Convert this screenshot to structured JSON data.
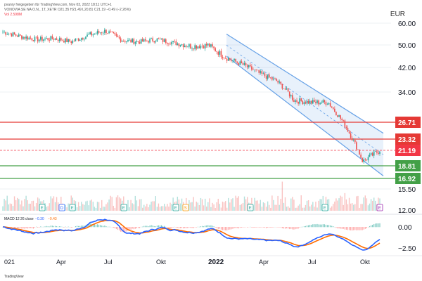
{
  "header": {
    "line1": "pvanry freigegeben für TradingView.com, Nov 03, 2022 18:11 UTC+1",
    "line2": "VONOVIA SE NA O.N., 1T, XETR  O21.35 H21.49 L20.81 C21.19 −0.49 (−2.26%)",
    "line3": "Vol 2.598M"
  },
  "currency": "EUR",
  "price_axis": {
    "ticks": [
      "60.00",
      "50.00",
      "42.00",
      "34.00",
      "15.50",
      "12.00"
    ],
    "tick_values": [
      60,
      50,
      42,
      34,
      15.5,
      12
    ],
    "log_scale": true
  },
  "levels": [
    {
      "label": "26.71",
      "value": 26.71,
      "color": "#e53935"
    },
    {
      "label": "23.32",
      "value": 23.32,
      "color": "#e53935"
    },
    {
      "label": "21.19",
      "value": 21.19,
      "color": "#f23645"
    },
    {
      "label": "18.81",
      "value": 18.81,
      "color": "#43a047"
    },
    {
      "label": "16.92",
      "value": 16.92,
      "color": "#43a047"
    }
  ],
  "x_axis": {
    "ticks": [
      {
        "label": "021",
        "bold": false
      },
      {
        "label": "Apr",
        "bold": false
      },
      {
        "label": "Jul",
        "bold": false
      },
      {
        "label": "Okt",
        "bold": false
      },
      {
        "label": "2022",
        "bold": true
      },
      {
        "label": "Apr",
        "bold": false
      },
      {
        "label": "Jul",
        "bold": false
      },
      {
        "label": "Okt",
        "bold": false
      }
    ]
  },
  "event_markers": [
    "E",
    "D",
    "E",
    "E",
    "E",
    "S",
    "E",
    "E",
    "E"
  ],
  "macd": {
    "label": "MACD",
    "params": "12 26 close",
    "values_text": [
      "−0.30",
      "−0.43"
    ],
    "values_colors": [
      "#2962ff",
      "#ff6d00"
    ],
    "axis_ticks": [
      "0.00",
      "−2.50"
    ],
    "axis_values": [
      0,
      -2.5
    ]
  },
  "footer": "TradingView",
  "chart_data": {
    "type": "line",
    "title": "VONOVIA SE NA O.N., 1T, XETR",
    "series": [
      {
        "name": "VONOVIA SE NA O.N.",
        "x": [
          "2021-01",
          "2021-02",
          "2021-03",
          "2021-04",
          "2021-05",
          "2021-06",
          "2021-07",
          "2021-08",
          "2021-09",
          "2021-10",
          "2021-11",
          "2021-12",
          "2022-01",
          "2022-02",
          "2022-03",
          "2022-04",
          "2022-05",
          "2022-06",
          "2022-07",
          "2022-08",
          "2022-09",
          "2022-10",
          "2022-11"
        ],
        "values": [
          56.0,
          54.0,
          52.5,
          53.0,
          51.5,
          54.5,
          56.5,
          52.0,
          51.5,
          52.5,
          51.0,
          49.5,
          50.0,
          45.5,
          43.0,
          40.0,
          37.5,
          32.0,
          31.5,
          31.5,
          26.0,
          19.5,
          21.19
        ]
      }
    ],
    "channel": {
      "upper_start": 55,
      "lower_start": 46,
      "end_upper": 24.5,
      "end_lower": 17.3
    },
    "ylim": [
      12,
      62
    ]
  }
}
